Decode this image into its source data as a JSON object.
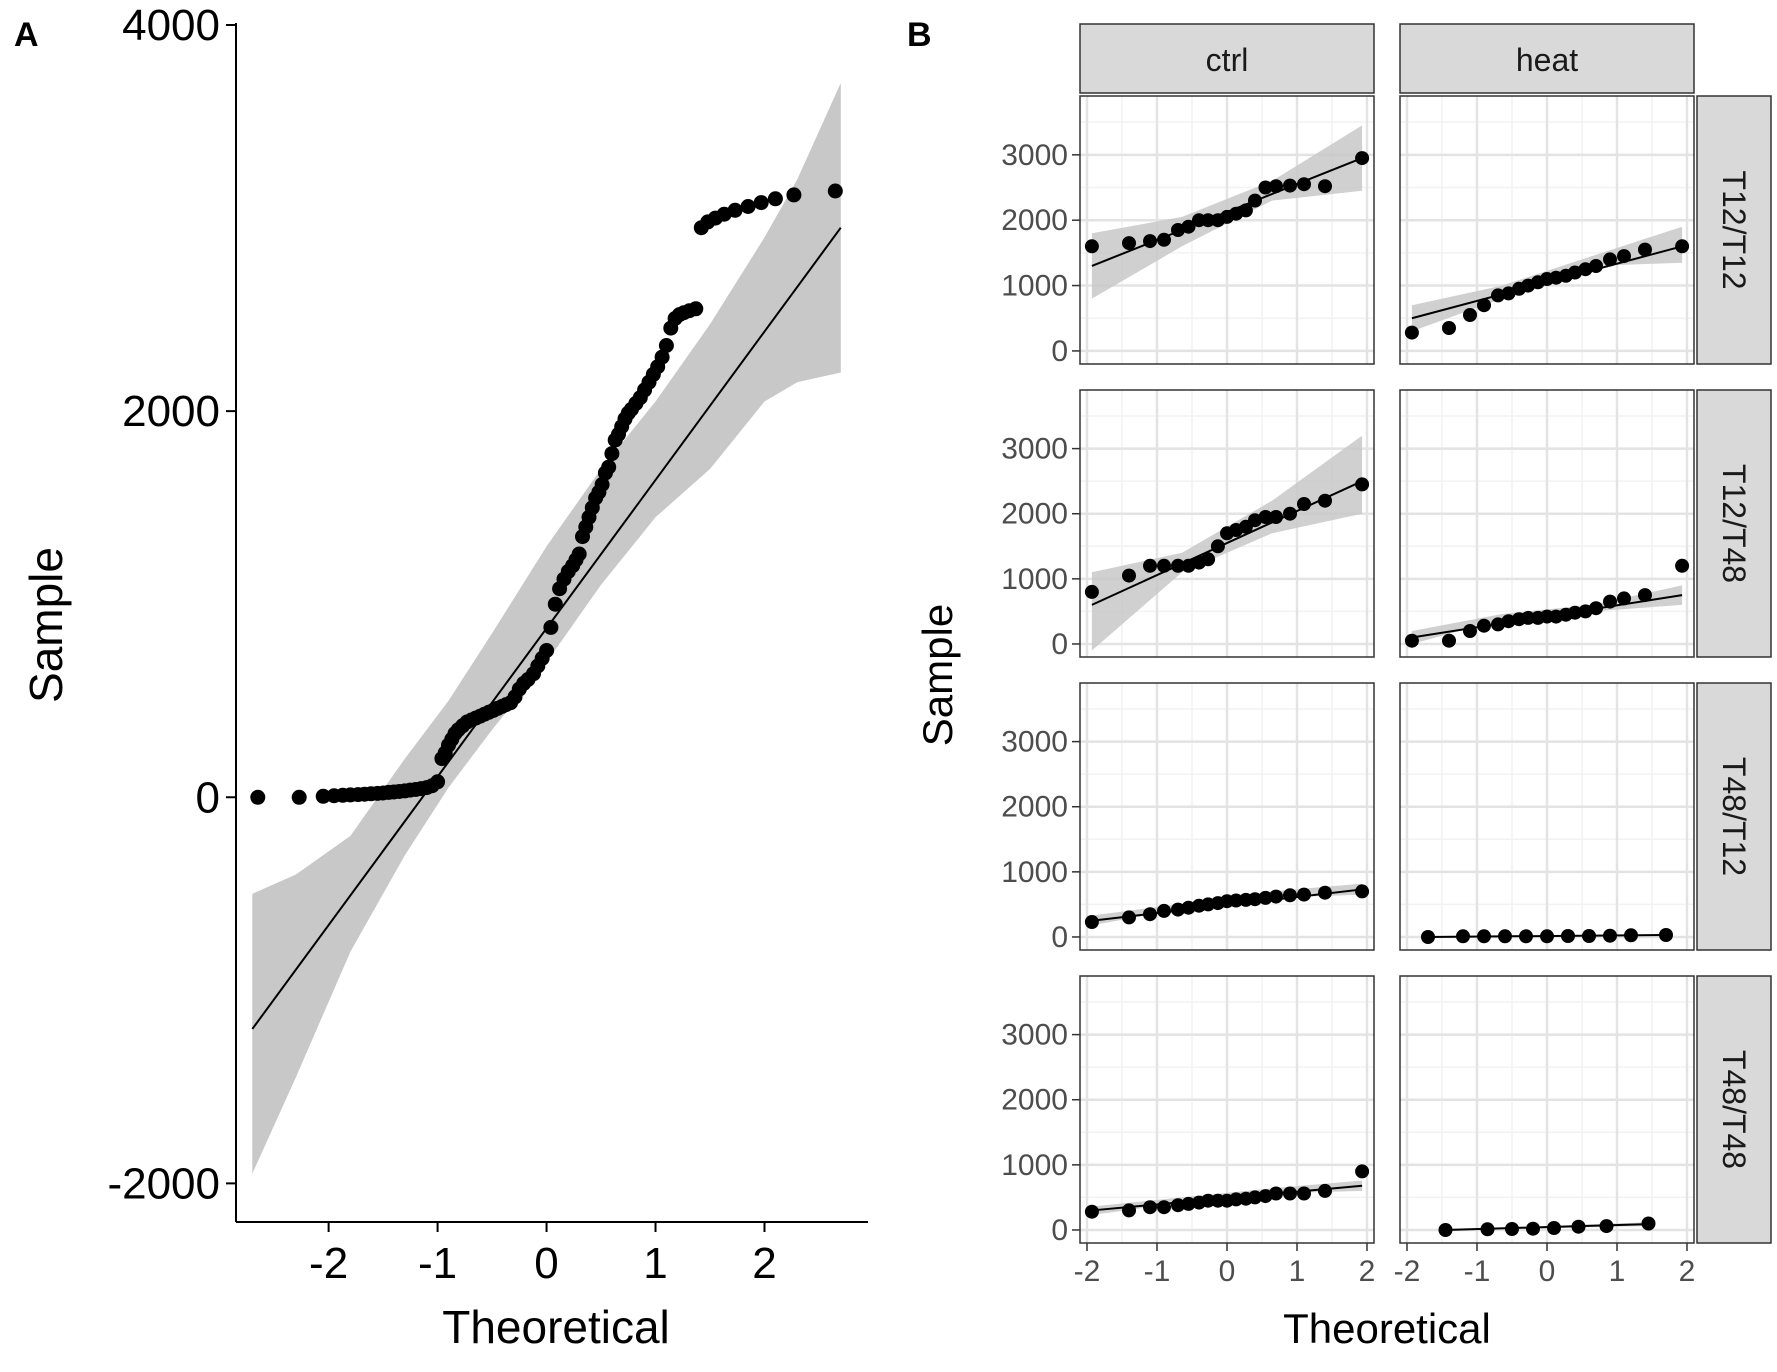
{
  "panel_labels": {
    "a": "A",
    "b": "B"
  },
  "chart_data": [
    {
      "type": "scatter",
      "panel": "A",
      "xlabel": "Theoretical",
      "ylabel": "Sample",
      "xlim": [
        -2.85,
        2.95
      ],
      "ylim": [
        -2200,
        4000
      ],
      "xticks": [
        -2,
        -1,
        0,
        1,
        2
      ],
      "yticks": [
        -2000,
        0,
        2000,
        4000
      ],
      "grid": false,
      "fit_line": {
        "x": [
          -2.7,
          2.7
        ],
        "y": [
          -1200,
          2950
        ]
      },
      "confidence_band": {
        "x": [
          -2.7,
          -2.3,
          -1.8,
          -1.3,
          -0.9,
          -0.5,
          0,
          0.5,
          1.0,
          1.5,
          2.0,
          2.3,
          2.7
        ],
        "lower": [
          -1950,
          -1450,
          -800,
          -300,
          50,
          350,
          700,
          1100,
          1450,
          1700,
          2050,
          2150,
          2200
        ],
        "upper": [
          -500,
          -400,
          -200,
          200,
          500,
          850,
          1300,
          1700,
          2050,
          2450,
          2900,
          3200,
          3700
        ]
      },
      "series": [
        {
          "x": [
            -2.65,
            -2.27,
            -2.05,
            -1.95,
            -1.87,
            -1.8,
            -1.73,
            -1.67,
            -1.61,
            -1.55,
            -1.5,
            -1.45,
            -1.4,
            -1.35,
            -1.3,
            -1.25,
            -1.2,
            -1.15,
            -1.1,
            -1.05,
            -1.0,
            -0.96,
            -0.93,
            -0.9,
            -0.87,
            -0.84,
            -0.81,
            -0.77,
            -0.73,
            -0.69,
            -0.65,
            -0.61,
            -0.57,
            -0.53,
            -0.49,
            -0.45,
            -0.41,
            -0.37,
            -0.33,
            -0.29,
            -0.25,
            -0.21,
            -0.17,
            -0.12,
            -0.08,
            -0.04,
            0.0,
            0.04,
            0.08,
            0.12,
            0.16,
            0.2,
            0.24,
            0.27,
            0.3,
            0.33,
            0.36,
            0.39,
            0.42,
            0.45,
            0.48,
            0.51,
            0.54,
            0.57,
            0.6,
            0.63,
            0.66,
            0.69,
            0.72,
            0.75,
            0.78,
            0.82,
            0.86,
            0.9,
            0.94,
            0.98,
            1.02,
            1.06,
            1.1,
            1.14,
            1.18,
            1.22,
            1.26,
            1.31,
            1.37,
            1.42,
            1.48,
            1.55,
            1.63,
            1.73,
            1.85,
            1.97,
            2.1,
            2.27,
            2.65
          ],
          "y": [
            0,
            0,
            5,
            8,
            10,
            12,
            14,
            16,
            18,
            20,
            22,
            25,
            27,
            30,
            33,
            37,
            40,
            45,
            50,
            60,
            80,
            200,
            230,
            270,
            300,
            330,
            350,
            370,
            390,
            400,
            410,
            420,
            430,
            440,
            450,
            460,
            470,
            480,
            490,
            520,
            560,
            590,
            610,
            640,
            680,
            720,
            760,
            880,
            1000,
            1080,
            1130,
            1170,
            1200,
            1230,
            1260,
            1350,
            1400,
            1450,
            1500,
            1550,
            1580,
            1620,
            1680,
            1710,
            1780,
            1850,
            1880,
            1920,
            1960,
            1990,
            2010,
            2040,
            2070,
            2110,
            2150,
            2190,
            2230,
            2280,
            2340,
            2430,
            2480,
            2500,
            2510,
            2520,
            2530,
            2950,
            2980,
            3000,
            3020,
            3040,
            3060,
            3080,
            3100,
            3120,
            3140
          ],
          "note_values_estimated": true
        }
      ]
    },
    {
      "type": "scatter",
      "panel": "B",
      "xlabel": "Theoretical",
      "ylabel": "Sample",
      "facet_cols": [
        "ctrl",
        "heat"
      ],
      "facet_rows": [
        "T12/T12",
        "T12/T48",
        "T48/T12",
        "T48/T48"
      ],
      "xlim": [
        -2.1,
        2.1
      ],
      "ylim": [
        -200,
        3900
      ],
      "xticks": [
        -2,
        -1,
        0,
        1,
        2
      ],
      "yticks": [
        0,
        1000,
        2000,
        3000
      ],
      "grid": true,
      "panels": [
        {
          "row": "T12/T12",
          "col": "ctrl",
          "x": [
            -1.93,
            -1.4,
            -1.1,
            -0.9,
            -0.7,
            -0.55,
            -0.4,
            -0.27,
            -0.13,
            0.0,
            0.13,
            0.27,
            0.4,
            0.55,
            0.7,
            0.9,
            1.1,
            1.4,
            1.93
          ],
          "y": [
            1600,
            1650,
            1680,
            1700,
            1850,
            1900,
            2000,
            2000,
            2000,
            2050,
            2100,
            2150,
            2300,
            2500,
            2520,
            2530,
            2550,
            2520,
            2950
          ],
          "fit": [
            [
              -1.93,
              1300
            ],
            [
              1.93,
              2950
            ]
          ],
          "band_lower": [
            800,
            1600,
            2300,
            2450
          ],
          "band_upper": [
            1800,
            2050,
            2600,
            3450
          ]
        },
        {
          "row": "T12/T12",
          "col": "heat",
          "x": [
            -1.93,
            -1.4,
            -1.1,
            -0.9,
            -0.7,
            -0.55,
            -0.4,
            -0.27,
            -0.13,
            0.0,
            0.13,
            0.27,
            0.4,
            0.55,
            0.7,
            0.9,
            1.1,
            1.4,
            1.93
          ],
          "y": [
            280,
            350,
            550,
            700,
            850,
            880,
            950,
            1000,
            1050,
            1100,
            1120,
            1150,
            1200,
            1250,
            1300,
            1400,
            1450,
            1550,
            1600
          ],
          "fit": [
            [
              -1.93,
              500
            ],
            [
              1.93,
              1600
            ]
          ],
          "band_lower": [
            300,
            800,
            1300,
            1350
          ],
          "band_upper": [
            700,
            1000,
            1450,
            1900
          ]
        },
        {
          "row": "T12/T48",
          "col": "ctrl",
          "x": [
            -1.93,
            -1.4,
            -1.1,
            -0.9,
            -0.7,
            -0.55,
            -0.4,
            -0.27,
            -0.13,
            0.0,
            0.13,
            0.27,
            0.4,
            0.55,
            0.7,
            0.9,
            1.1,
            1.4,
            1.93
          ],
          "y": [
            800,
            1050,
            1200,
            1200,
            1200,
            1200,
            1250,
            1300,
            1500,
            1700,
            1750,
            1800,
            1900,
            1950,
            1950,
            2000,
            2150,
            2200,
            2450
          ],
          "fit": [
            [
              -1.93,
              600
            ],
            [
              1.93,
              2500
            ]
          ],
          "band_lower": [
            -100,
            1100,
            1700,
            2000
          ],
          "band_upper": [
            1100,
            1400,
            2200,
            3200
          ]
        },
        {
          "row": "T12/T48",
          "col": "heat",
          "x": [
            -1.93,
            -1.4,
            -1.1,
            -0.9,
            -0.7,
            -0.55,
            -0.4,
            -0.27,
            -0.13,
            0.0,
            0.13,
            0.27,
            0.4,
            0.55,
            0.7,
            0.9,
            1.1,
            1.4,
            1.93
          ],
          "y": [
            50,
            50,
            200,
            280,
            300,
            350,
            380,
            400,
            400,
            420,
            420,
            450,
            480,
            500,
            550,
            650,
            700,
            750,
            1200
          ],
          "fit": [
            [
              -1.93,
              100
            ],
            [
              1.93,
              750
            ]
          ],
          "band_lower": [
            0,
            380,
            500,
            600
          ],
          "band_upper": [
            200,
            460,
            600,
            900
          ]
        },
        {
          "row": "T48/T12",
          "col": "ctrl",
          "x": [
            -1.93,
            -1.4,
            -1.1,
            -0.9,
            -0.7,
            -0.55,
            -0.4,
            -0.27,
            -0.13,
            0.0,
            0.13,
            0.27,
            0.4,
            0.55,
            0.7,
            0.9,
            1.1,
            1.4,
            1.93
          ],
          "y": [
            230,
            300,
            350,
            400,
            420,
            450,
            480,
            500,
            520,
            550,
            560,
            570,
            580,
            600,
            620,
            640,
            650,
            680,
            700
          ],
          "fit": [
            [
              -1.93,
              250
            ],
            [
              1.93,
              730
            ]
          ],
          "band_lower": [
            180,
            430,
            600,
            650
          ],
          "band_upper": [
            330,
            510,
            700,
            820
          ]
        },
        {
          "row": "T48/T12",
          "col": "heat",
          "x": [
            -1.7,
            -1.2,
            -0.9,
            -0.6,
            -0.3,
            0.0,
            0.3,
            0.6,
            0.9,
            1.2,
            1.7
          ],
          "y": [
            0,
            10,
            10,
            10,
            10,
            10,
            15,
            15,
            20,
            25,
            30
          ],
          "fit": [
            [
              -1.7,
              0
            ],
            [
              1.7,
              30
            ]
          ],
          "band_lower": [
            -5,
            5,
            10,
            20
          ],
          "band_upper": [
            10,
            15,
            20,
            40
          ]
        },
        {
          "row": "T48/T48",
          "col": "ctrl",
          "x": [
            -1.93,
            -1.4,
            -1.1,
            -0.9,
            -0.7,
            -0.55,
            -0.4,
            -0.27,
            -0.13,
            0.0,
            0.13,
            0.27,
            0.4,
            0.55,
            0.7,
            0.9,
            1.1,
            1.4,
            1.93
          ],
          "y": [
            280,
            300,
            350,
            350,
            380,
            400,
            420,
            450,
            450,
            450,
            470,
            480,
            500,
            520,
            560,
            560,
            560,
            600,
            900
          ],
          "fit": [
            [
              -1.93,
              300
            ],
            [
              1.93,
              680
            ]
          ],
          "band_lower": [
            230,
            420,
            560,
            600
          ],
          "band_upper": [
            360,
            500,
            640,
            760
          ]
        },
        {
          "row": "T48/T48",
          "col": "heat",
          "x": [
            -1.45,
            -0.85,
            -0.5,
            -0.2,
            0.1,
            0.45,
            0.85,
            1.45
          ],
          "y": [
            0,
            10,
            15,
            20,
            30,
            50,
            60,
            100
          ],
          "fit": [
            [
              -1.45,
              0
            ],
            [
              1.45,
              90
            ]
          ],
          "band_lower": [
            -10,
            10,
            40,
            60
          ],
          "band_upper": [
            20,
            40,
            80,
            120
          ]
        }
      ]
    }
  ]
}
